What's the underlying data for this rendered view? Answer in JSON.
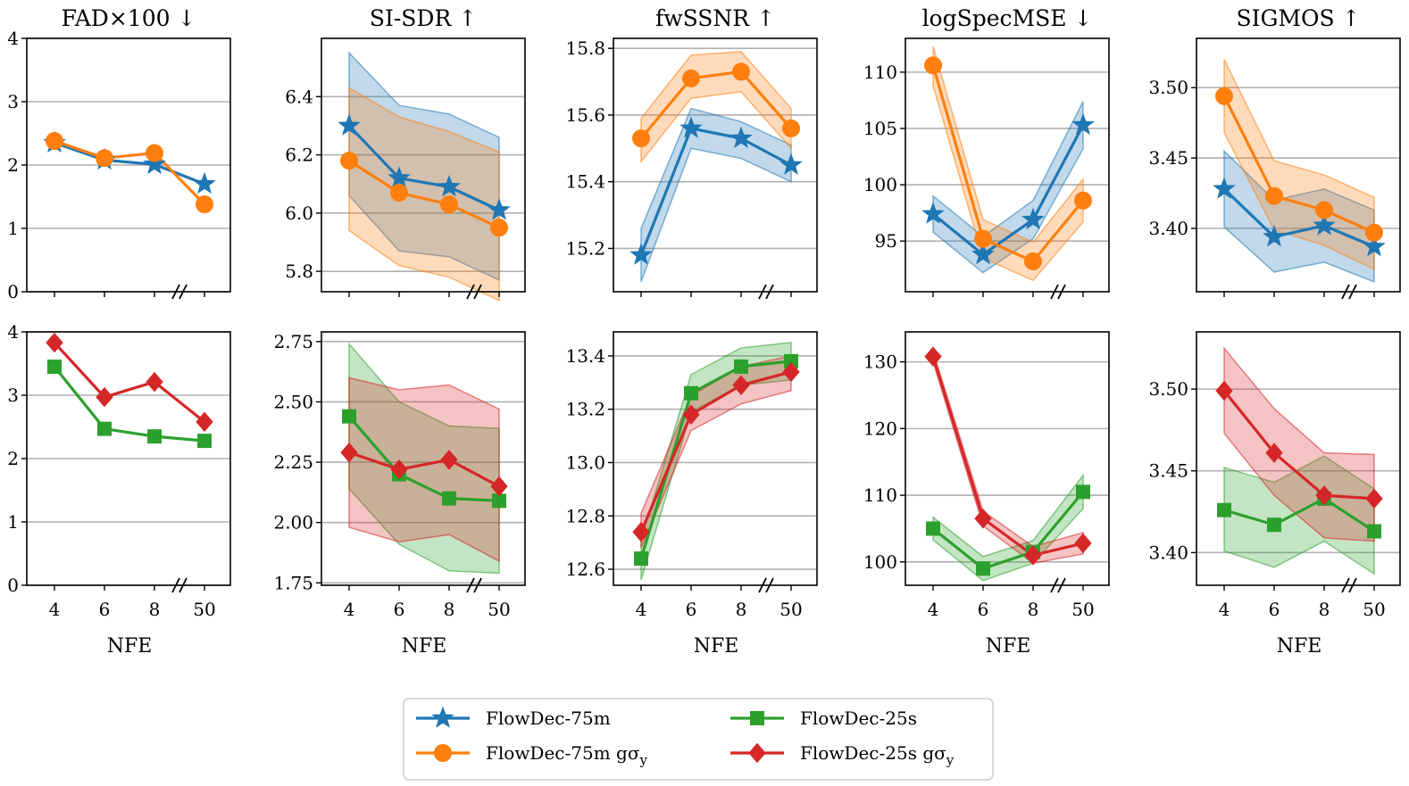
{
  "chart_data": {
    "type": "line",
    "x_categories": [
      "4",
      "6",
      "8",
      "50"
    ],
    "xlabel": "NFE",
    "legend": {
      "placement": "bottom-center",
      "entries": [
        {
          "key": "flowdec-75m",
          "label": "FlowDec-75m"
        },
        {
          "key": "flowdec-25s",
          "label": "FlowDec-25s"
        },
        {
          "key": "flowdec-75m-g",
          "label": "FlowDec-75m gσ",
          "subscript": "y"
        },
        {
          "key": "flowdec-25s-g",
          "label": "FlowDec-25s gσ",
          "subscript": "y"
        }
      ]
    },
    "series_styles": {
      "flowdec-75m": {
        "color": "#1f77b4",
        "marker": "star"
      },
      "flowdec-75m-g": {
        "color": "#ff7f0e",
        "marker": "circle"
      },
      "flowdec-25s": {
        "color": "#2ca02c",
        "marker": "square"
      },
      "flowdec-25s-g": {
        "color": "#d62728",
        "marker": "diamond"
      }
    },
    "panels": [
      {
        "row": 0,
        "col": 0,
        "title": "FAD×100 ↓",
        "ylim": [
          0,
          4
        ],
        "yticks": [
          0,
          1,
          2,
          3,
          4
        ],
        "ytick_labels": [
          "0",
          "1",
          "2",
          "3",
          "4"
        ],
        "series": [
          {
            "key": "flowdec-75m",
            "values": [
              2.35,
              2.08,
              2.01,
              1.7
            ]
          },
          {
            "key": "flowdec-75m-g",
            "values": [
              2.38,
              2.11,
              2.19,
              1.38
            ]
          }
        ]
      },
      {
        "row": 0,
        "col": 1,
        "title": "SI-SDR ↑",
        "ylim": [
          5.73,
          6.6
        ],
        "yticks": [
          5.8,
          6.0,
          6.2,
          6.4
        ],
        "ytick_labels": [
          "5.8",
          "6.0",
          "6.2",
          "6.4"
        ],
        "series": [
          {
            "key": "flowdec-75m",
            "values": [
              6.3,
              6.12,
              6.09,
              6.01
            ],
            "lower": [
              6.06,
              5.87,
              5.85,
              5.77
            ],
            "upper": [
              6.55,
              6.37,
              6.34,
              6.26
            ]
          },
          {
            "key": "flowdec-75m-g",
            "values": [
              6.18,
              6.07,
              6.03,
              5.95
            ],
            "lower": [
              5.94,
              5.82,
              5.78,
              5.7
            ],
            "upper": [
              6.43,
              6.33,
              6.28,
              6.21
            ]
          }
        ]
      },
      {
        "row": 0,
        "col": 2,
        "title": "fwSSNR ↑",
        "ylim": [
          15.07,
          15.83
        ],
        "yticks": [
          15.2,
          15.4,
          15.6,
          15.8
        ],
        "ytick_labels": [
          "15.2",
          "15.4",
          "15.6",
          "15.8"
        ],
        "series": [
          {
            "key": "flowdec-75m",
            "values": [
              15.18,
              15.56,
              15.53,
              15.45
            ],
            "lower": [
              15.1,
              15.5,
              15.47,
              15.4
            ],
            "upper": [
              15.26,
              15.62,
              15.58,
              15.51
            ]
          },
          {
            "key": "flowdec-75m-g",
            "values": [
              15.53,
              15.71,
              15.73,
              15.56
            ],
            "lower": [
              15.46,
              15.65,
              15.67,
              15.5
            ],
            "upper": [
              15.59,
              15.78,
              15.79,
              15.62
            ]
          }
        ]
      },
      {
        "row": 0,
        "col": 3,
        "title": "logSpecMSE ↓",
        "ylim": [
          90.5,
          113
        ],
        "yticks": [
          95,
          100,
          105,
          110
        ],
        "ytick_labels": [
          "95",
          "100",
          "105",
          "110"
        ],
        "series": [
          {
            "key": "flowdec-75m",
            "values": [
              97.4,
              93.8,
              96.9,
              105.3
            ],
            "lower": [
              95.8,
              92.2,
              95.2,
              103.2
            ],
            "upper": [
              99.0,
              95.4,
              98.6,
              107.4
            ]
          },
          {
            "key": "flowdec-75m-g",
            "values": [
              110.6,
              95.2,
              93.2,
              98.6
            ],
            "lower": [
              108.8,
              93.5,
              91.5,
              96.7
            ],
            "upper": [
              112.3,
              96.9,
              94.9,
              100.5
            ]
          }
        ]
      },
      {
        "row": 0,
        "col": 4,
        "title": "SIGMOS ↑",
        "ylim": [
          3.355,
          3.535
        ],
        "yticks": [
          3.4,
          3.45,
          3.5
        ],
        "ytick_labels": [
          "3.40",
          "3.45",
          "3.50"
        ],
        "series": [
          {
            "key": "flowdec-75m",
            "values": [
              3.428,
              3.394,
              3.402,
              3.387
            ],
            "lower": [
              3.401,
              3.369,
              3.376,
              3.362
            ],
            "upper": [
              3.455,
              3.42,
              3.428,
              3.413
            ]
          },
          {
            "key": "flowdec-75m-g",
            "values": [
              3.494,
              3.423,
              3.413,
              3.397
            ],
            "lower": [
              3.468,
              3.399,
              3.388,
              3.371
            ],
            "upper": [
              3.52,
              3.448,
              3.438,
              3.422
            ]
          }
        ]
      },
      {
        "row": 1,
        "col": 0,
        "title": "",
        "ylim": [
          0,
          4
        ],
        "yticks": [
          0,
          1,
          2,
          3,
          4
        ],
        "ytick_labels": [
          "0",
          "1",
          "2",
          "3",
          "4"
        ],
        "series": [
          {
            "key": "flowdec-25s",
            "values": [
              3.45,
              2.47,
              2.35,
              2.28
            ]
          },
          {
            "key": "flowdec-25s-g",
            "values": [
              3.83,
              2.97,
              3.21,
              2.58
            ]
          }
        ]
      },
      {
        "row": 1,
        "col": 1,
        "title": "",
        "ylim": [
          1.74,
          2.79
        ],
        "yticks": [
          1.75,
          2.0,
          2.25,
          2.5,
          2.75
        ],
        "ytick_labels": [
          "1.75",
          "2.00",
          "2.25",
          "2.50",
          "2.75"
        ],
        "series": [
          {
            "key": "flowdec-25s",
            "values": [
              2.44,
              2.2,
              2.1,
              2.09
            ],
            "lower": [
              2.14,
              1.91,
              1.8,
              1.79
            ],
            "upper": [
              2.74,
              2.5,
              2.4,
              2.39
            ]
          },
          {
            "key": "flowdec-25s-g",
            "values": [
              2.29,
              2.22,
              2.26,
              2.15
            ],
            "lower": [
              1.98,
              1.92,
              1.95,
              1.84
            ],
            "upper": [
              2.6,
              2.55,
              2.57,
              2.47
            ]
          }
        ]
      },
      {
        "row": 1,
        "col": 2,
        "title": "",
        "ylim": [
          12.54,
          13.49
        ],
        "yticks": [
          12.6,
          12.8,
          13.0,
          13.2,
          13.4
        ],
        "ytick_labels": [
          "12.6",
          "12.8",
          "13.0",
          "13.2",
          "13.4"
        ],
        "series": [
          {
            "key": "flowdec-25s",
            "values": [
              12.64,
              13.26,
              13.36,
              13.38
            ],
            "lower": [
              12.56,
              13.19,
              13.29,
              13.31
            ],
            "upper": [
              12.71,
              13.33,
              13.43,
              13.45
            ]
          },
          {
            "key": "flowdec-25s-g",
            "values": [
              12.74,
              13.18,
              13.29,
              13.34
            ],
            "lower": [
              12.68,
              13.12,
              13.22,
              13.27
            ],
            "upper": [
              12.81,
              13.25,
              13.36,
              13.4
            ]
          }
        ]
      },
      {
        "row": 1,
        "col": 3,
        "title": "",
        "ylim": [
          96.5,
          134.5
        ],
        "yticks": [
          100,
          110,
          120,
          130
        ],
        "ytick_labels": [
          "100",
          "110",
          "120",
          "130"
        ],
        "series": [
          {
            "key": "flowdec-25s",
            "values": [
              105.0,
              99.0,
              101.5,
              110.5
            ],
            "lower": [
              103.3,
              97.2,
              99.8,
              108.0
            ],
            "upper": [
              106.7,
              100.8,
              103.2,
              113.0
            ]
          },
          {
            "key": "flowdec-25s-g",
            "values": [
              130.8,
              106.5,
              101.0,
              102.8
            ],
            "lower": [
              130.0,
              105.4,
              99.8,
              101.2
            ],
            "upper": [
              131.6,
              107.6,
              102.3,
              104.4
            ]
          }
        ]
      },
      {
        "row": 1,
        "col": 4,
        "title": "",
        "ylim": [
          3.38,
          3.535
        ],
        "yticks": [
          3.4,
          3.45,
          3.5
        ],
        "ytick_labels": [
          "3.40",
          "3.45",
          "3.50"
        ],
        "series": [
          {
            "key": "flowdec-25s",
            "values": [
              3.426,
              3.417,
              3.433,
              3.413
            ],
            "lower": [
              3.401,
              3.391,
              3.407,
              3.387
            ],
            "upper": [
              3.452,
              3.443,
              3.459,
              3.439
            ]
          },
          {
            "key": "flowdec-25s-g",
            "values": [
              3.499,
              3.461,
              3.435,
              3.433
            ],
            "lower": [
              3.473,
              3.435,
              3.409,
              3.407
            ],
            "upper": [
              3.525,
              3.488,
              3.461,
              3.46
            ]
          }
        ]
      }
    ]
  }
}
